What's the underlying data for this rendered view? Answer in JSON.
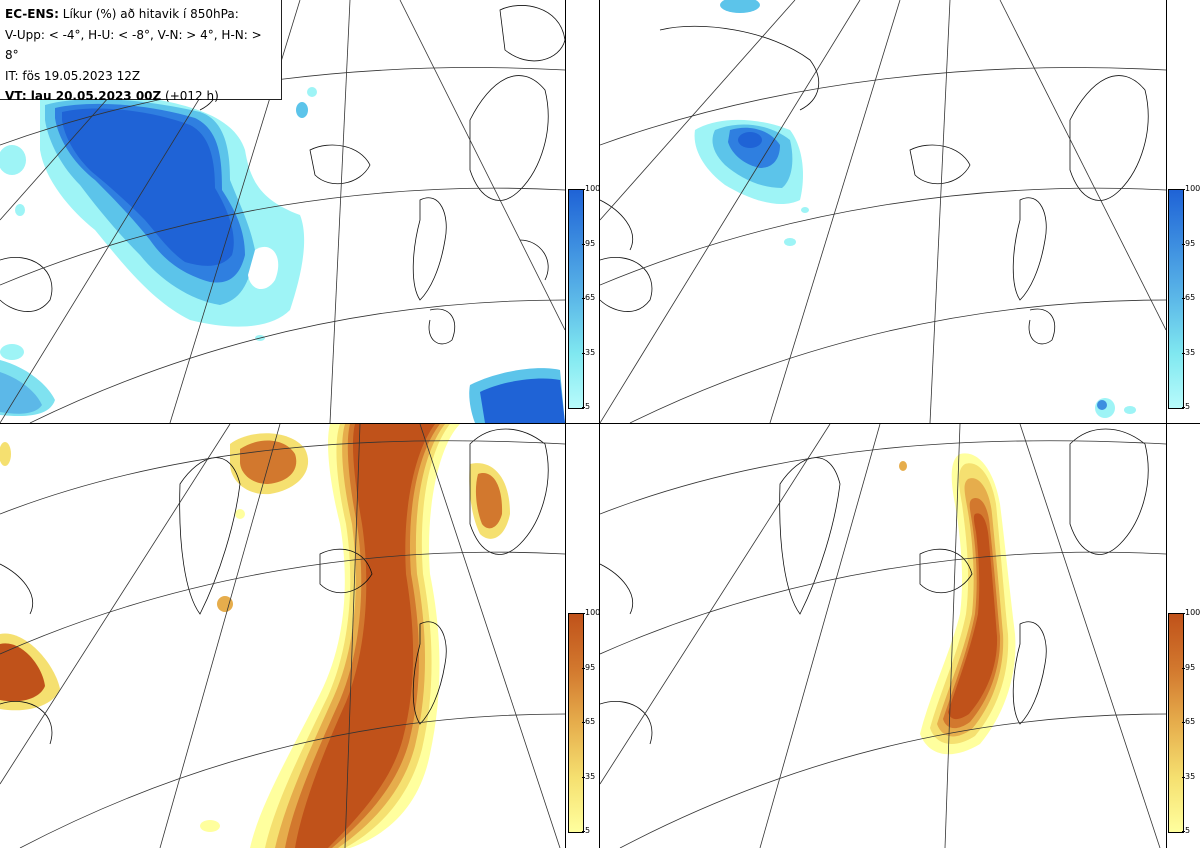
{
  "header": {
    "line1_bold": "EC-ENS:",
    "line1_rest": " Líkur (%) að hitavik í 850hPa:",
    "line2": "V-Upp: < -4°, H-U: < -8°, V-N: > 4°, H-N: > 8°",
    "line3": "IT: fös 19.05.2023 12Z",
    "line4_bold": "VT: lau 20.05.2023 00Z",
    "line4_rest": " (+012 h)"
  },
  "colorbars": {
    "blue": {
      "ticks": [
        "100",
        "95",
        "65",
        "35",
        "5"
      ],
      "colors": [
        "#1f63d6",
        "#3d8ee0",
        "#5cb8e8",
        "#80e8f0",
        "#b8fbfb"
      ]
    },
    "orange": {
      "ticks": [
        "100",
        "95",
        "65",
        "35",
        "5"
      ],
      "colors": [
        "#c0521a",
        "#d2782e",
        "#e6ad4c",
        "#f5e070",
        "#ffff9e"
      ]
    }
  },
  "panels": [
    {
      "id": "V-Upp",
      "scale": "blue"
    },
    {
      "id": "H-U",
      "scale": "blue"
    },
    {
      "id": "V-N",
      "scale": "orange"
    },
    {
      "id": "H-N",
      "scale": "orange"
    }
  ]
}
